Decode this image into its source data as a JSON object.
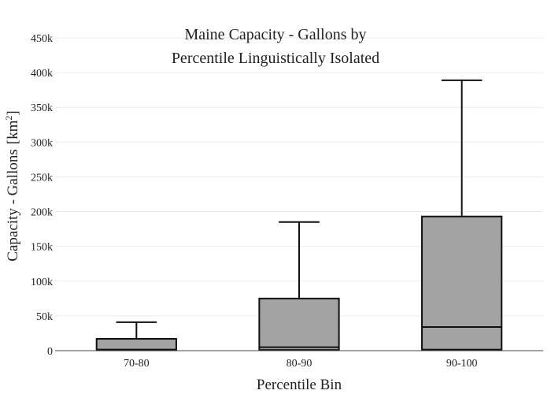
{
  "chart_data": {
    "type": "box",
    "title_lines": [
      "Maine Capacity - Gallons by",
      "Percentile Linguistically Isolated"
    ],
    "xlabel": "Percentile Bin",
    "ylabel": "Capacity - Gallons",
    "ylabel_unit_base": "[km",
    "ylabel_unit_exp": "2",
    "ylabel_unit_close": "]",
    "ylim": [
      0,
      450000
    ],
    "yticks": [
      {
        "value": 0,
        "label": "0"
      },
      {
        "value": 50000,
        "label": "50k"
      },
      {
        "value": 100000,
        "label": "100k"
      },
      {
        "value": 150000,
        "label": "150k"
      },
      {
        "value": 200000,
        "label": "200k"
      },
      {
        "value": 250000,
        "label": "250k"
      },
      {
        "value": 300000,
        "label": "300k"
      },
      {
        "value": 350000,
        "label": "350k"
      },
      {
        "value": 400000,
        "label": "400k"
      },
      {
        "value": 450000,
        "label": "450k"
      }
    ],
    "categories": [
      "70-80",
      "80-90",
      "90-100"
    ],
    "boxes": [
      {
        "category": "70-80",
        "min": 0,
        "q1": 500,
        "median": 1500,
        "q3": 17000,
        "max": 41000
      },
      {
        "category": "80-90",
        "min": 0,
        "q1": 1000,
        "median": 5000,
        "q3": 75000,
        "max": 185000
      },
      {
        "category": "90-100",
        "min": 0,
        "q1": 1500,
        "median": 34000,
        "q3": 193000,
        "max": 389000
      }
    ],
    "box_color": "#a3a3a3",
    "line_color": "#111111",
    "grid": true,
    "legend": "none"
  }
}
